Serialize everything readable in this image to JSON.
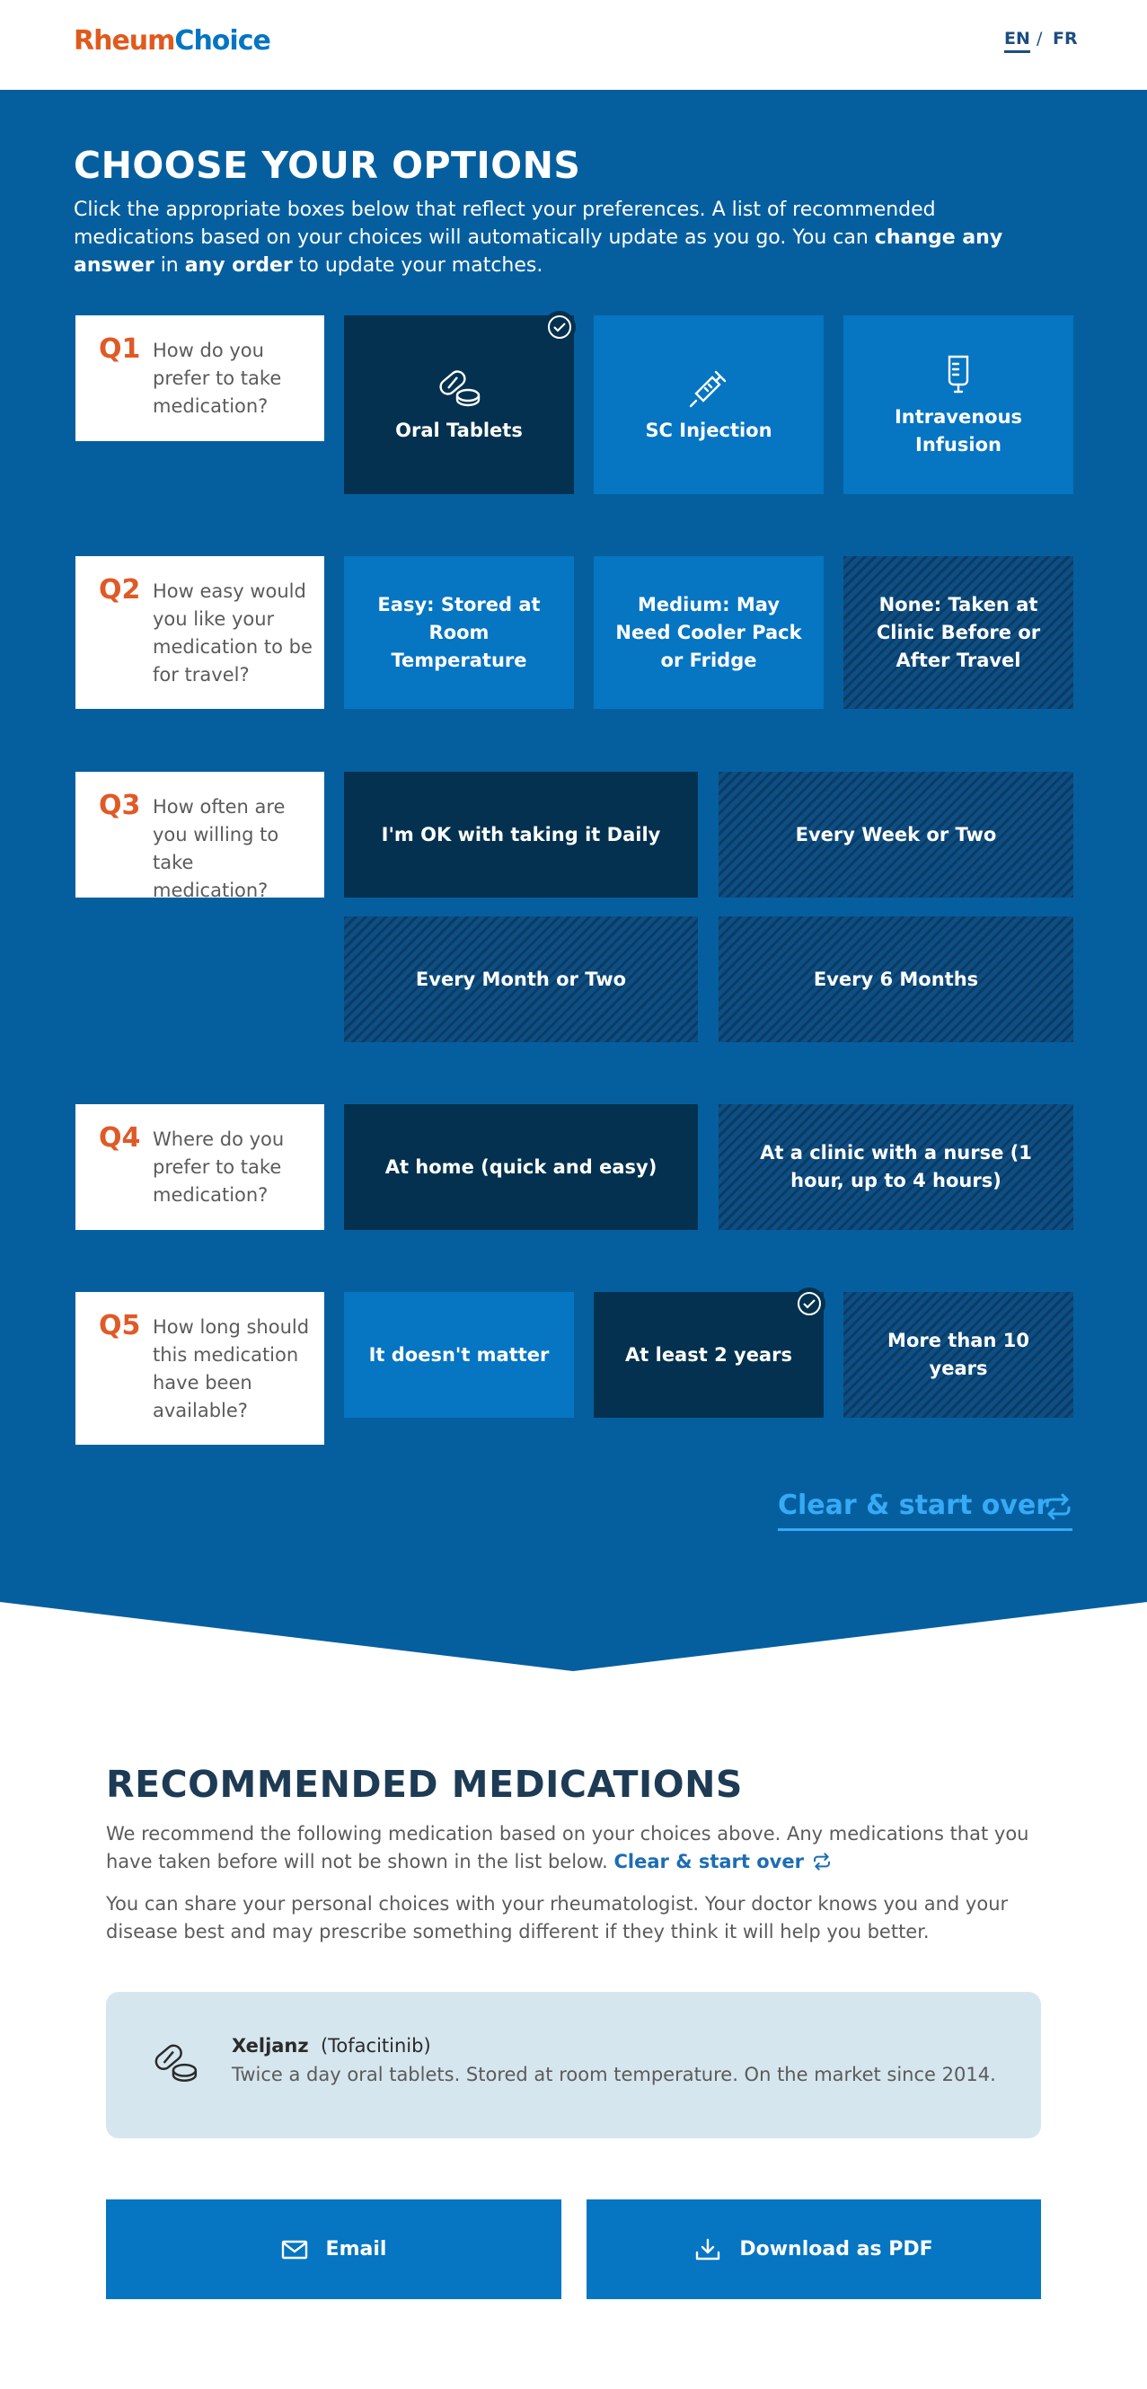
{
  "header": {
    "logo_part1": "Rheum",
    "logo_part2": "Choice",
    "lang_en": "EN",
    "lang_sep": "/",
    "lang_fr": "FR"
  },
  "options": {
    "title": "CHOOSE YOUR OPTIONS",
    "desc_1": "Click the appropriate boxes below that reflect your preferences. A list of recommended medications based on your choices will automatically update as you go. You can ",
    "desc_bold1": "change any answer",
    "desc_2": " in ",
    "desc_bold2": "any order",
    "desc_3": " to update your matches.",
    "clear_label": "Clear & start over",
    "questions": [
      {
        "num": "Q1",
        "text": "How do you prefer to take medication?",
        "answers": [
          "Oral Tablets",
          "SC Injection",
          "Intravenous Infusion"
        ]
      },
      {
        "num": "Q2",
        "text": "How easy would you like your medication to be for travel?",
        "answers": [
          "Easy: Stored at Room Temperature",
          "Medium: May Need Cooler Pack or Fridge",
          "None: Taken at Clinic Before or After Travel"
        ]
      },
      {
        "num": "Q3",
        "text": "How often are you willing to take medication?",
        "answers": [
          "I'm OK with taking it Daily",
          "Every Week or Two",
          "Every Month or Two",
          "Every 6 Months"
        ]
      },
      {
        "num": "Q4",
        "text": "Where do you prefer to take medication?",
        "answers": [
          "At home (quick and easy)",
          "At a clinic with a nurse (1 hour, up to 4 hours)"
        ]
      },
      {
        "num": "Q5",
        "text": "How long should this medication have been available?",
        "answers": [
          "It doesn't matter",
          "At least 2 years",
          "More than 10 years"
        ]
      }
    ]
  },
  "recommended": {
    "title": "RECOMMENDED MEDICATIONS",
    "p1": "We recommend the following medication based on your choices above. Any medications that you have taken before will not be shown in the list below. ",
    "p1_link": "Clear & start over",
    "p2": "You can share your personal choices with your rheumatologist. Your doctor knows you and your disease best and may prescribe something different if they think it will help you better.",
    "medication": {
      "name": "Xeljanz",
      "generic": "(Tofacitinib)",
      "description": "Twice a day oral tablets. Stored at room temperature. On the market since 2014."
    },
    "email_label": "Email",
    "pdf_label": "Download as PDF"
  },
  "colors": {
    "section_bg": "#055f9f",
    "tile_light": "#0675c2",
    "tile_selected": "#03314f",
    "accent_orange": "#df5a26",
    "link_blue": "#36aaf5"
  }
}
